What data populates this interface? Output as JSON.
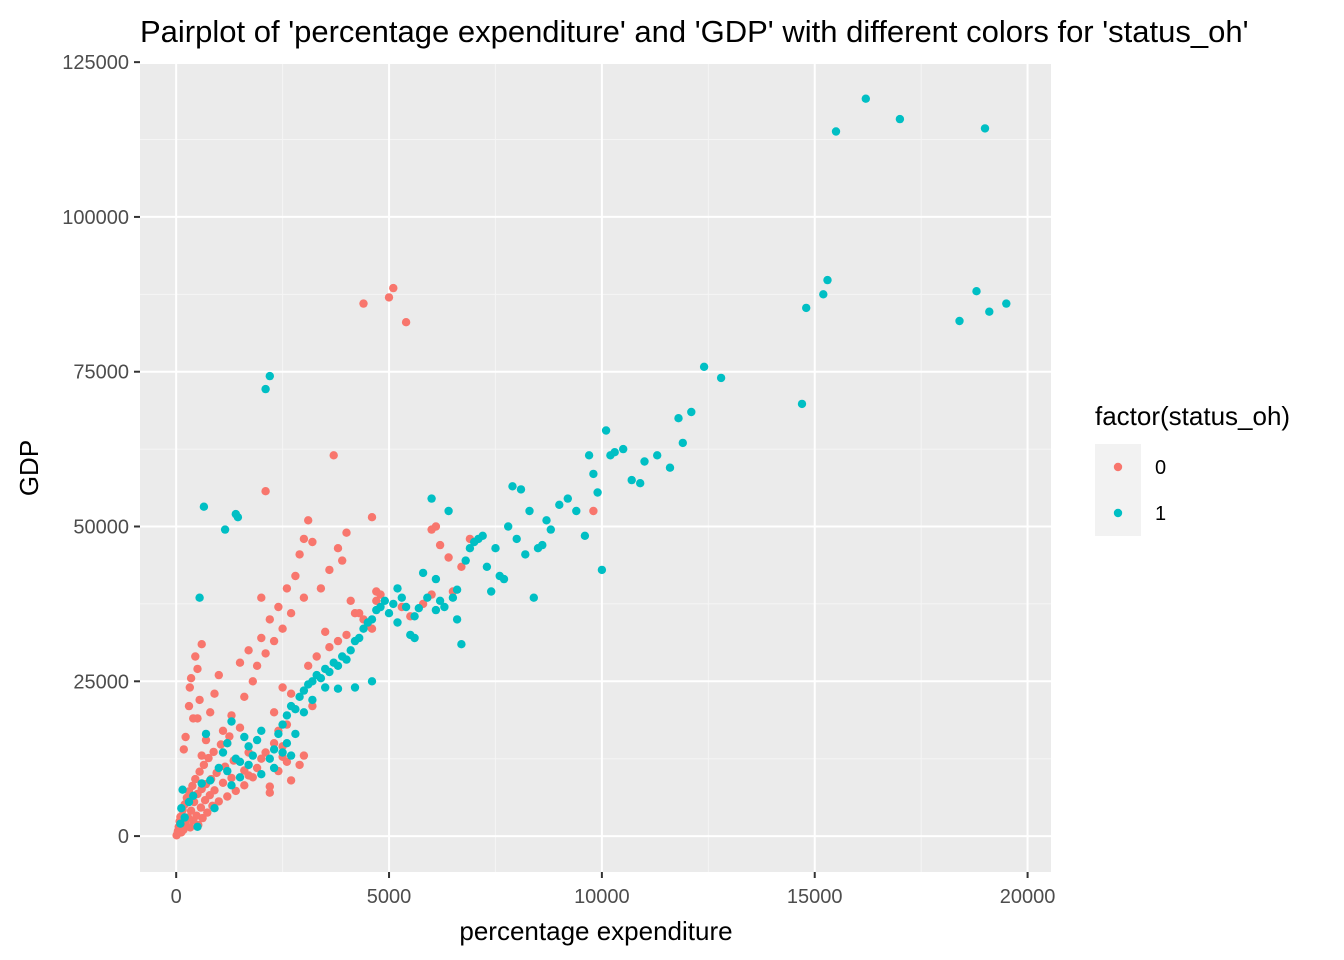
{
  "chart_data": {
    "type": "scatter",
    "title": "Pairplot of 'percentage expenditure' and 'GDP' with different colors for 'status_oh'",
    "xlabel": "percentage expenditure",
    "ylabel": "GDP",
    "xlim": [
      -850,
      20550
    ],
    "ylim": [
      -5800,
      124700
    ],
    "xticks": [
      0,
      5000,
      10000,
      15000,
      20000
    ],
    "yticks": [
      0,
      25000,
      50000,
      75000,
      100000,
      125000
    ],
    "xtick_labels": [
      "0",
      "5000",
      "10000",
      "15000",
      "20000"
    ],
    "ytick_labels": [
      "0",
      "25000",
      "50000",
      "75000",
      "100000",
      "125000"
    ],
    "grid": true,
    "legend": {
      "title": "factor(status_oh)",
      "position": "right"
    },
    "series": [
      {
        "name": "0",
        "color": "#F8766D",
        "points": [
          [
            10,
            120
          ],
          [
            30,
            400
          ],
          [
            40,
            800
          ],
          [
            60,
            1500
          ],
          [
            80,
            2400
          ],
          [
            100,
            3100
          ],
          [
            120,
            600
          ],
          [
            150,
            4200
          ],
          [
            170,
            1000
          ],
          [
            200,
            5100
          ],
          [
            220,
            2000
          ],
          [
            250,
            6200
          ],
          [
            280,
            3000
          ],
          [
            300,
            7200
          ],
          [
            330,
            1400
          ],
          [
            350,
            4100
          ],
          [
            380,
            8100
          ],
          [
            400,
            2500
          ],
          [
            420,
            5500
          ],
          [
            450,
            9200
          ],
          [
            480,
            3300
          ],
          [
            500,
            6800
          ],
          [
            520,
            1800
          ],
          [
            550,
            10400
          ],
          [
            580,
            4600
          ],
          [
            600,
            7600
          ],
          [
            620,
            2900
          ],
          [
            650,
            11500
          ],
          [
            680,
            5800
          ],
          [
            700,
            8400
          ],
          [
            730,
            3800
          ],
          [
            760,
            12600
          ],
          [
            790,
            6600
          ],
          [
            820,
            9200
          ],
          [
            850,
            4900
          ],
          [
            880,
            13600
          ],
          [
            900,
            7400
          ],
          [
            950,
            10200
          ],
          [
            1000,
            5600
          ],
          [
            1050,
            14800
          ],
          [
            1100,
            8600
          ],
          [
            1150,
            11200
          ],
          [
            1200,
            6400
          ],
          [
            1250,
            16100
          ],
          [
            1300,
            9400
          ],
          [
            1350,
            12200
          ],
          [
            1400,
            7300
          ],
          [
            1500,
            17500
          ],
          [
            1600,
            10600
          ],
          [
            1700,
            13500
          ],
          [
            180,
            14000
          ],
          [
            220,
            16000
          ],
          [
            300,
            21000
          ],
          [
            320,
            24000
          ],
          [
            350,
            25500
          ],
          [
            400,
            19000
          ],
          [
            450,
            29000
          ],
          [
            500,
            27000
          ],
          [
            550,
            22000
          ],
          [
            600,
            31000
          ],
          [
            800,
            20000
          ],
          [
            900,
            23000
          ],
          [
            1000,
            26000
          ],
          [
            1100,
            17000
          ],
          [
            1200,
            15000
          ],
          [
            1300,
            19500
          ],
          [
            1500,
            28000
          ],
          [
            1600,
            22500
          ],
          [
            1700,
            30000
          ],
          [
            1800,
            25000
          ],
          [
            1900,
            27500
          ],
          [
            2000,
            32000
          ],
          [
            2100,
            29500
          ],
          [
            2200,
            35000
          ],
          [
            2300,
            31500
          ],
          [
            2400,
            37000
          ],
          [
            2500,
            33500
          ],
          [
            2600,
            40000
          ],
          [
            2700,
            36000
          ],
          [
            2800,
            42000
          ],
          [
            2900,
            45500
          ],
          [
            3000,
            48000
          ],
          [
            3100,
            51000
          ],
          [
            3200,
            47500
          ],
          [
            3400,
            40000
          ],
          [
            3600,
            43000
          ],
          [
            3800,
            46500
          ],
          [
            3900,
            44500
          ],
          [
            4000,
            49000
          ],
          [
            4100,
            38000
          ],
          [
            4300,
            36000
          ],
          [
            4500,
            34000
          ],
          [
            4700,
            39500
          ],
          [
            2000,
            38500
          ],
          [
            2100,
            55700
          ],
          [
            2300,
            20000
          ],
          [
            2500,
            24000
          ],
          [
            2600,
            18000
          ],
          [
            2700,
            23000
          ],
          [
            3000,
            38500
          ],
          [
            3200,
            21000
          ],
          [
            3500,
            33000
          ],
          [
            3700,
            61500
          ],
          [
            3800,
            31500
          ],
          [
            4200,
            36000
          ],
          [
            4400,
            86000
          ],
          [
            4600,
            51500
          ],
          [
            5000,
            87000
          ],
          [
            5100,
            88500
          ],
          [
            5400,
            83000
          ],
          [
            4700,
            38000
          ],
          [
            4800,
            39000
          ],
          [
            5300,
            37000
          ],
          [
            5500,
            35500
          ],
          [
            5800,
            37500
          ],
          [
            6000,
            39000
          ],
          [
            6200,
            47000
          ],
          [
            6400,
            45000
          ],
          [
            6500,
            39500
          ],
          [
            6700,
            43500
          ],
          [
            6900,
            48000
          ],
          [
            6100,
            50000
          ],
          [
            6000,
            49500
          ],
          [
            2200,
            8000
          ],
          [
            2400,
            10500
          ],
          [
            2600,
            12000
          ],
          [
            2700,
            9000
          ],
          [
            2900,
            11500
          ],
          [
            3000,
            13000
          ],
          [
            1800,
            9500
          ],
          [
            1900,
            11000
          ],
          [
            2100,
            13500
          ],
          [
            2300,
            15000
          ],
          [
            2400,
            17000
          ],
          [
            2500,
            14500
          ],
          [
            1600,
            8200
          ],
          [
            1700,
            9800
          ],
          [
            2000,
            12500
          ],
          [
            2200,
            7000
          ],
          [
            2500,
            12800
          ],
          [
            3100,
            27500
          ],
          [
            3300,
            29000
          ],
          [
            3600,
            30500
          ],
          [
            4000,
            32500
          ],
          [
            4400,
            35000
          ],
          [
            4600,
            33500
          ],
          [
            9800,
            52500
          ],
          [
            500,
            19000
          ],
          [
            600,
            13000
          ],
          [
            700,
            15500
          ]
        ]
      },
      {
        "name": "1",
        "color": "#00BFC4",
        "points": [
          [
            100,
            2000
          ],
          [
            120,
            4500
          ],
          [
            150,
            7500
          ],
          [
            200,
            3000
          ],
          [
            300,
            5500
          ],
          [
            400,
            6500
          ],
          [
            500,
            1500
          ],
          [
            550,
            38500
          ],
          [
            600,
            8500
          ],
          [
            650,
            53200
          ],
          [
            700,
            16500
          ],
          [
            800,
            9000
          ],
          [
            900,
            4500
          ],
          [
            1000,
            11000
          ],
          [
            1100,
            13500
          ],
          [
            1150,
            49500
          ],
          [
            1200,
            15000
          ],
          [
            1300,
            18500
          ],
          [
            1400,
            52000
          ],
          [
            1450,
            51500
          ],
          [
            1500,
            12000
          ],
          [
            1600,
            16000
          ],
          [
            1700,
            14500
          ],
          [
            1800,
            13000
          ],
          [
            1900,
            15500
          ],
          [
            2000,
            17000
          ],
          [
            2100,
            72200
          ],
          [
            2200,
            74300
          ],
          [
            2300,
            14000
          ],
          [
            2400,
            16500
          ],
          [
            2500,
            18000
          ],
          [
            2600,
            19500
          ],
          [
            2700,
            21000
          ],
          [
            2800,
            20500
          ],
          [
            2900,
            22500
          ],
          [
            3000,
            23500
          ],
          [
            3100,
            24500
          ],
          [
            3200,
            25000
          ],
          [
            3300,
            26000
          ],
          [
            3400,
            25500
          ],
          [
            3500,
            27000
          ],
          [
            3600,
            26500
          ],
          [
            3700,
            28000
          ],
          [
            3800,
            27500
          ],
          [
            3900,
            29000
          ],
          [
            4000,
            28500
          ],
          [
            4100,
            30000
          ],
          [
            4200,
            31500
          ],
          [
            4300,
            32000
          ],
          [
            4400,
            33500
          ],
          [
            4500,
            34500
          ],
          [
            4600,
            35000
          ],
          [
            4700,
            36500
          ],
          [
            4800,
            37000
          ],
          [
            4900,
            38000
          ],
          [
            5000,
            36000
          ],
          [
            5100,
            37500
          ],
          [
            5200,
            40000
          ],
          [
            5300,
            38500
          ],
          [
            5400,
            37000
          ],
          [
            5500,
            32500
          ],
          [
            5600,
            35500
          ],
          [
            5700,
            36800
          ],
          [
            5800,
            42500
          ],
          [
            5900,
            38500
          ],
          [
            6000,
            54500
          ],
          [
            6100,
            41500
          ],
          [
            6200,
            38000
          ],
          [
            6300,
            37000
          ],
          [
            6400,
            52500
          ],
          [
            6500,
            38500
          ],
          [
            6600,
            35000
          ],
          [
            6700,
            31000
          ],
          [
            6800,
            44500
          ],
          [
            6900,
            46500
          ],
          [
            7000,
            47500
          ],
          [
            7100,
            48000
          ],
          [
            7200,
            48500
          ],
          [
            7300,
            43500
          ],
          [
            7400,
            39500
          ],
          [
            7500,
            46500
          ],
          [
            7600,
            42000
          ],
          [
            7700,
            41500
          ],
          [
            7800,
            50000
          ],
          [
            7900,
            56500
          ],
          [
            8000,
            48000
          ],
          [
            8100,
            56000
          ],
          [
            8200,
            45500
          ],
          [
            8300,
            52500
          ],
          [
            8400,
            38500
          ],
          [
            8500,
            46500
          ],
          [
            8600,
            47000
          ],
          [
            8700,
            51000
          ],
          [
            8800,
            49500
          ],
          [
            9000,
            53500
          ],
          [
            9200,
            54500
          ],
          [
            9400,
            52500
          ],
          [
            9600,
            48500
          ],
          [
            9700,
            61500
          ],
          [
            9800,
            58500
          ],
          [
            9900,
            55500
          ],
          [
            10000,
            43000
          ],
          [
            10100,
            65500
          ],
          [
            10200,
            61500
          ],
          [
            10300,
            62000
          ],
          [
            10500,
            62500
          ],
          [
            10700,
            57500
          ],
          [
            10900,
            57000
          ],
          [
            11000,
            60500
          ],
          [
            11300,
            61500
          ],
          [
            11600,
            59500
          ],
          [
            11800,
            67500
          ],
          [
            11900,
            63500
          ],
          [
            12100,
            68500
          ],
          [
            12400,
            75800
          ],
          [
            12800,
            74000
          ],
          [
            14700,
            69800
          ],
          [
            14800,
            85300
          ],
          [
            15200,
            87500
          ],
          [
            15300,
            89800
          ],
          [
            15500,
            113800
          ],
          [
            16200,
            119100
          ],
          [
            17000,
            115800
          ],
          [
            18400,
            83200
          ],
          [
            18800,
            88000
          ],
          [
            19000,
            114300
          ],
          [
            19100,
            84700
          ],
          [
            19500,
            86000
          ],
          [
            2000,
            10000
          ],
          [
            2200,
            12500
          ],
          [
            2300,
            11000
          ],
          [
            2500,
            13500
          ],
          [
            2600,
            15000
          ],
          [
            2700,
            13000
          ],
          [
            2800,
            16500
          ],
          [
            1200,
            10500
          ],
          [
            1300,
            8200
          ],
          [
            1400,
            12500
          ],
          [
            1500,
            9500
          ],
          [
            1700,
            11500
          ],
          [
            3000,
            20000
          ],
          [
            3200,
            22000
          ],
          [
            3500,
            24000
          ],
          [
            3800,
            23800
          ],
          [
            4200,
            24000
          ],
          [
            4600,
            25000
          ],
          [
            5200,
            34500
          ],
          [
            5600,
            32000
          ],
          [
            6100,
            36500
          ],
          [
            6600,
            39800
          ]
        ]
      }
    ]
  }
}
